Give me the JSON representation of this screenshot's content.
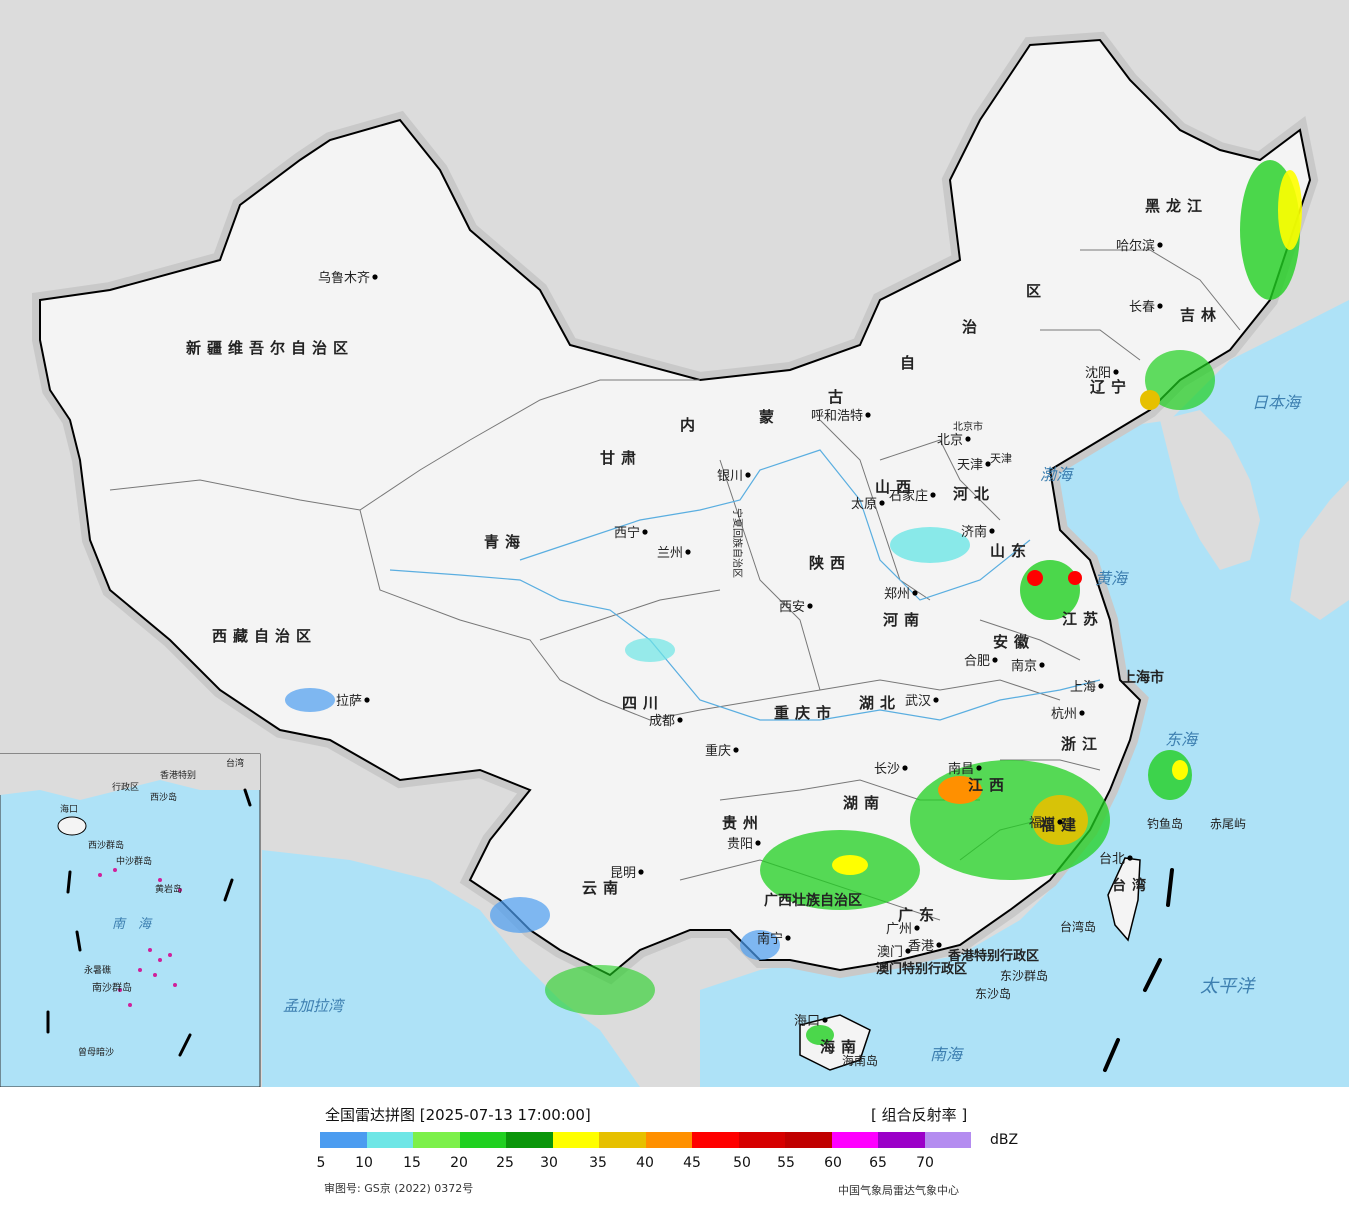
{
  "legend": {
    "title": "全国雷达拼图 [2025-07-13 17:00:00]",
    "product": "[ 组合反射率 ]",
    "unit": "dBZ",
    "colors": [
      "#4b9cf0",
      "#6ee6e6",
      "#7cf04a",
      "#20d020",
      "#0a960a",
      "#ffff00",
      "#e6c000",
      "#ff9000",
      "#ff0000",
      "#d60000",
      "#c00000",
      "#ff00ff",
      "#9b00c8",
      "#b48cf0"
    ],
    "ticks": [
      "5",
      "10",
      "15",
      "20",
      "25",
      "30",
      "35",
      "40",
      "45",
      "50",
      "55",
      "60",
      "65",
      "70"
    ],
    "approval": "审图号: GS京 (2022) 0372号",
    "credit": "中国气象局雷达气象中心"
  },
  "map": {
    "seas": [
      "日本海",
      "渤海",
      "黄海",
      "东海",
      "太平洋",
      "南海",
      "孟加拉湾"
    ],
    "regions": [
      "黑龙江",
      "吉林",
      "辽宁",
      "新疆维吾尔自治区",
      "西藏自治区",
      "青海",
      "甘肃",
      "四川",
      "云南",
      "贵州",
      "重庆市",
      "陕西",
      "山西",
      "河北",
      "河南",
      "山东",
      "江苏",
      "安徽",
      "湖北",
      "湖南",
      "江西",
      "浙江",
      "福建",
      "广西壮族自治区",
      "广东",
      "海南",
      "台湾",
      "上海市",
      "香港特别行政区",
      "澳门特别行政区",
      "宁夏回族自治区",
      "北京市",
      "天津",
      "内",
      "蒙",
      "古",
      "自",
      "治",
      "区"
    ],
    "cities": [
      "乌鲁木齐",
      "拉萨",
      "西宁",
      "兰州",
      "银川",
      "呼和浩特",
      "北京",
      "天津",
      "石家庄",
      "太原",
      "济南",
      "郑州",
      "西安",
      "成都",
      "重庆",
      "贵阳",
      "昆明",
      "南宁",
      "广州",
      "澳门",
      "香港",
      "长沙",
      "武汉",
      "南昌",
      "福州",
      "杭州",
      "南京",
      "合肥",
      "上海",
      "沈阳",
      "长春",
      "哈尔滨",
      "台北",
      "海口"
    ],
    "islands": [
      "钓鱼岛",
      "赤尾屿",
      "台湾岛",
      "东沙群岛",
      "海南岛",
      "东沙岛"
    ],
    "inset_labels": [
      "南",
      "海",
      "中沙群岛",
      "黄岩岛",
      "西沙群岛",
      "永暑礁",
      "南沙群岛",
      "曾母暗沙",
      "香港特别",
      "行政区",
      "海口",
      "西沙岛",
      "台湾"
    ]
  }
}
